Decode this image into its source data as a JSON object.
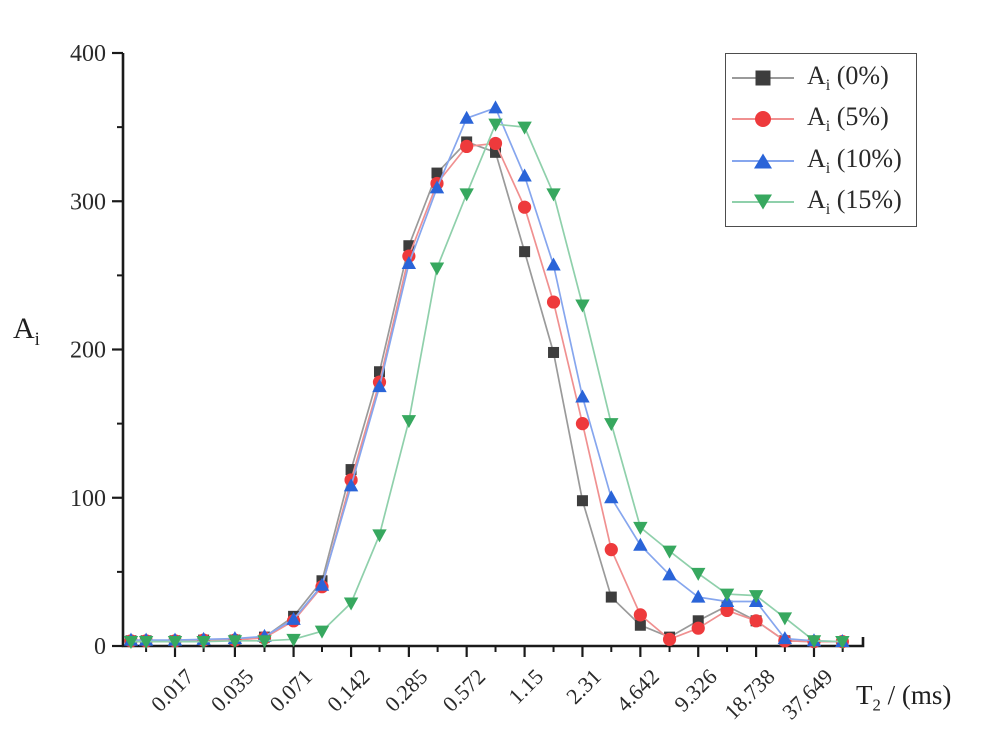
{
  "chart_data": {
    "type": "line",
    "title": "",
    "xlabel": {
      "main": "T",
      "sub": "2",
      "rest": " / (ms)"
    },
    "ylabel": {
      "main": "A",
      "sub": "i"
    },
    "x_scale": "log",
    "grid": false,
    "legend_position": "top-right",
    "ylim": [
      0,
      400
    ],
    "y_major_ticks": [
      0,
      100,
      200,
      300,
      400
    ],
    "y_minor_ticks": [
      50,
      150,
      250,
      350
    ],
    "x_tick_labels": [
      "0.017",
      "0.035",
      "0.071",
      "0.142",
      "0.285",
      "0.572",
      "1.15",
      "2.31",
      "4.642",
      "9.326",
      "18.738",
      "37.649"
    ],
    "x_tick_values": [
      0.017,
      0.035,
      0.071,
      0.142,
      0.285,
      0.572,
      1.15,
      2.31,
      4.642,
      9.326,
      18.738,
      37.649
    ],
    "x_minor_tick_values": [
      0.012,
      0.024,
      0.05,
      0.1,
      0.2,
      0.403,
      0.81,
      1.63,
      3.27,
      6.6,
      13.2,
      26.5,
      53.2
    ],
    "x": [
      0.01,
      0.012,
      0.017,
      0.024,
      0.035,
      0.05,
      0.071,
      0.1,
      0.142,
      0.2,
      0.285,
      0.4,
      0.572,
      0.81,
      1.15,
      1.63,
      2.31,
      3.27,
      4.642,
      6.6,
      9.326,
      13.2,
      18.738,
      26.5,
      37.649,
      53
    ],
    "series": [
      {
        "label": {
          "main": "A",
          "sub": "i",
          "rest": " (0%)"
        },
        "marker": "square",
        "color": "#3d3d3d",
        "line_color": "#9a9a9a",
        "values": [
          3.5,
          3.5,
          3.5,
          4,
          4,
          6,
          20,
          44,
          119,
          185,
          270,
          319,
          340,
          333,
          266,
          198,
          98,
          33,
          14,
          6,
          17,
          27,
          17,
          3.5,
          3,
          3
        ]
      },
      {
        "label": {
          "main": "A",
          "sub": "i",
          "rest": " (5%)"
        },
        "marker": "circle",
        "color": "#ee3a3c",
        "line_color": "#f09090",
        "values": [
          3.5,
          3.5,
          3.5,
          4,
          4,
          5.5,
          17,
          40,
          112,
          178,
          263,
          312,
          337,
          339,
          296,
          232,
          150,
          65,
          21,
          4.5,
          12,
          24,
          17,
          3.5,
          3,
          3
        ]
      },
      {
        "label": {
          "main": "A",
          "sub": "i",
          "rest": " (10%)"
        },
        "marker": "triangle-up",
        "color": "#2a64d8",
        "line_color": "#86a6ee",
        "values": [
          4,
          4,
          4,
          4.5,
          5,
          6.5,
          18,
          41,
          108,
          175,
          258,
          309,
          356,
          363,
          317,
          257,
          168,
          100,
          68,
          48,
          33,
          30,
          30,
          5,
          3.5,
          3
        ]
      },
      {
        "label": {
          "main": "A",
          "sub": "i",
          "rest": " (15%)"
        },
        "marker": "triangle-down",
        "color": "#37a85f",
        "line_color": "#8fd0ab",
        "values": [
          3,
          3,
          3,
          3,
          3.5,
          3.5,
          4.5,
          10,
          29,
          75,
          152,
          255,
          305,
          352,
          350,
          305,
          230,
          150,
          80,
          64,
          49,
          35,
          34,
          19,
          3.5,
          3
        ]
      }
    ]
  },
  "style": {
    "axis_color": "#1a1a1a",
    "tick_label_color": "#2a2a2a",
    "background": "#ffffff"
  }
}
